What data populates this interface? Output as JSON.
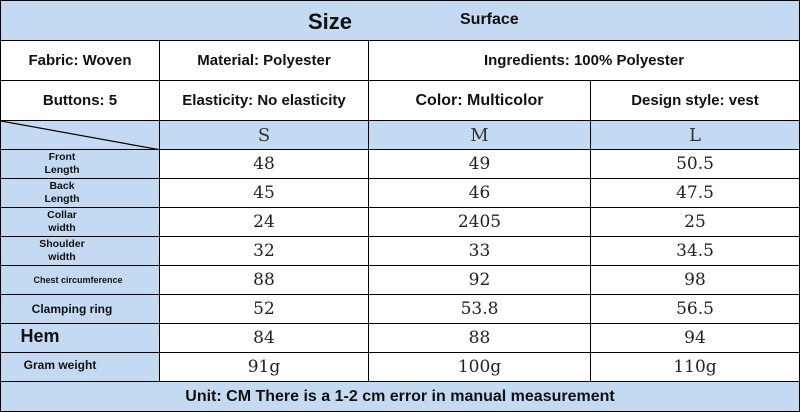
{
  "header": {
    "size_label": "Size",
    "surface_label": "Surface"
  },
  "info": {
    "fabric": "Fabric: Woven",
    "material": "Material: Polyester",
    "ingredients": "Ingredients: 100% Polyester",
    "buttons": "Buttons: 5",
    "elasticity": "Elasticity: No elasticity",
    "color": "Color: Multicolor",
    "design_style": "Design style: vest"
  },
  "sizes": [
    "S",
    "M",
    "L"
  ],
  "rows": [
    {
      "label": "Front\nLength",
      "values": [
        "48",
        "49",
        "50.5"
      ]
    },
    {
      "label": "Back\nLength",
      "values": [
        "45",
        "46",
        "47.5"
      ]
    },
    {
      "label": "Collar\nwidth",
      "values": [
        "24",
        "2405",
        "25"
      ]
    },
    {
      "label": "Shoulder\nwidth",
      "values": [
        "32",
        "33",
        "34.5"
      ]
    },
    {
      "label": "Chest circumference",
      "values": [
        "88",
        "92",
        "98"
      ]
    },
    {
      "label": "Clamping ring",
      "values": [
        "52",
        "53.8",
        "56.5"
      ]
    },
    {
      "label": "Hem",
      "values": [
        "84",
        "88",
        "94"
      ]
    },
    {
      "label": "Gram weight",
      "values": [
        "91g",
        "100g",
        "110g"
      ]
    }
  ],
  "footer": "Unit: CM There is a 1-2 cm error in manual measurement"
}
